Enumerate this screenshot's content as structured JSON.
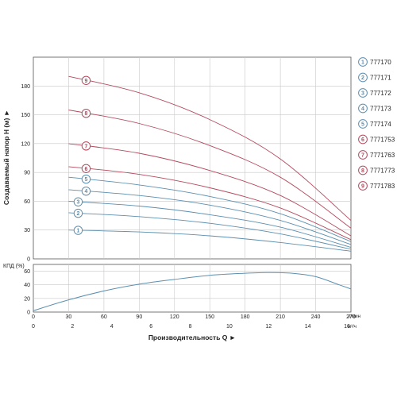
{
  "chart_data": [
    {
      "type": "line",
      "ylabel": "Создаваемый напор H (м) ►",
      "xlim": [
        0,
        270
      ],
      "ylim": [
        0,
        210
      ],
      "x_ticks": [
        0,
        30,
        60,
        90,
        120,
        150,
        180,
        210,
        240,
        270
      ],
      "y_ticks": [
        0,
        30,
        60,
        90,
        120,
        150,
        180
      ],
      "grid": true,
      "legend_position": "right",
      "series": [
        {
          "name": "777170",
          "marker": "1",
          "color": "#5b8fb0",
          "x": [
            30,
            90,
            150,
            210,
            270
          ],
          "y": [
            30,
            28,
            24,
            17,
            8
          ]
        },
        {
          "name": "777171",
          "marker": "2",
          "color": "#5b8fb0",
          "x": [
            30,
            90,
            150,
            210,
            270
          ],
          "y": [
            48,
            44,
            37,
            26,
            10
          ]
        },
        {
          "name": "777172",
          "marker": "3",
          "color": "#5b8fb0",
          "x": [
            30,
            90,
            150,
            210,
            270
          ],
          "y": [
            60,
            55,
            46,
            33,
            12
          ]
        },
        {
          "name": "777173",
          "marker": "4",
          "color": "#5b8fb0",
          "x": [
            30,
            90,
            150,
            210,
            270
          ],
          "y": [
            72,
            66,
            56,
            40,
            15
          ]
        },
        {
          "name": "777174",
          "marker": "5",
          "color": "#5b8fb0",
          "x": [
            30,
            90,
            150,
            210,
            270
          ],
          "y": [
            85,
            77,
            65,
            47,
            18
          ]
        },
        {
          "name": "7771753",
          "marker": "6",
          "color": "#b44a5e",
          "x": [
            30,
            90,
            150,
            210,
            270
          ],
          "y": [
            96,
            88,
            74,
            53,
            20
          ]
        },
        {
          "name": "7771763",
          "marker": "7",
          "color": "#b44a5e",
          "x": [
            30,
            90,
            150,
            210,
            270
          ],
          "y": [
            120,
            110,
            92,
            66,
            24
          ]
        },
        {
          "name": "7771773",
          "marker": "8",
          "color": "#b44a5e",
          "x": [
            30,
            90,
            150,
            210,
            270
          ],
          "y": [
            155,
            141,
            118,
            85,
            32
          ]
        },
        {
          "name": "7771783",
          "marker": "9",
          "color": "#b44a5e",
          "x": [
            30,
            90,
            150,
            210,
            270
          ],
          "y": [
            190,
            173,
            145,
            104,
            40
          ]
        }
      ]
    },
    {
      "type": "line",
      "ylabel": "КПД (%)",
      "xlabel": "Производительность Q ►",
      "xlim": [
        0,
        270
      ],
      "ylim": [
        0,
        70
      ],
      "x_ticks": [
        0,
        30,
        60,
        90,
        120,
        150,
        180,
        210,
        240,
        270
      ],
      "x_unit": "л/мин",
      "x2_ticks": [
        0,
        2,
        4,
        6,
        8,
        10,
        12,
        14,
        16
      ],
      "x2_unit": "м³/ч",
      "y_ticks": [
        0,
        20,
        40,
        60
      ],
      "grid": true,
      "series": [
        {
          "color": "#5b8fb0",
          "x": [
            0,
            30,
            60,
            90,
            120,
            150,
            180,
            200,
            220,
            240,
            260,
            270
          ],
          "y": [
            2,
            18,
            31,
            41,
            48,
            54,
            57,
            58,
            57,
            52,
            40,
            34
          ]
        }
      ]
    }
  ],
  "palette": {
    "blue": "#5b8fb0",
    "red": "#b44a5e",
    "grid": "#c8c8c8",
    "frame": "#555555"
  }
}
